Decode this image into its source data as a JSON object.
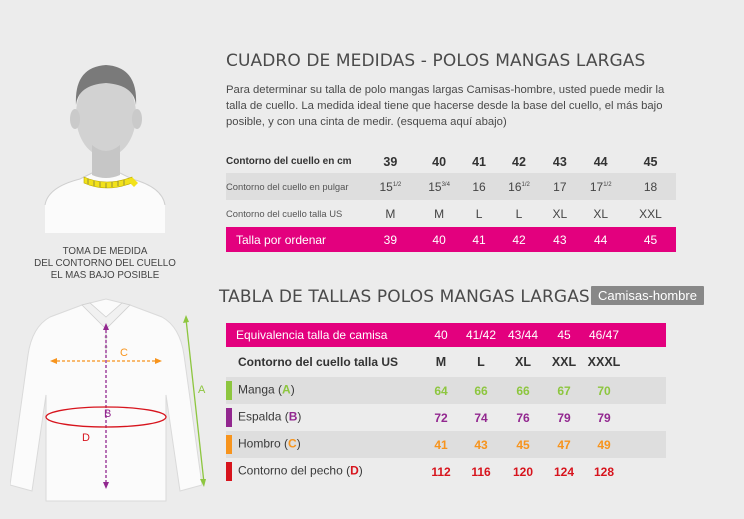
{
  "neck_caption": [
    "TOMA DE MEDIDA",
    "DEL CONTORNO DEL CUELLO",
    "EL MAS BAJO POSIBLE"
  ],
  "section1": {
    "title": "CUADRO DE MEDIDAS - POLOS MANGAS LARGAS",
    "intro": "Para determinar su talla de polo mangas largas Camisas-hombre, usted puede medir la talla de cuello. La medida ideal tiene que hacerse desde la base del cuello, el más bajo posible, y con una cinta de medir. (esquema aquí abajo)",
    "rows": [
      {
        "label": "Contorno del cuello en cm",
        "values": [
          "39",
          "40",
          "41",
          "42",
          "43",
          "44",
          "45"
        ]
      },
      {
        "label": "Contorno del cuello en pulgar",
        "values": [
          "15",
          "15",
          "16",
          "16",
          "17",
          "17",
          "18"
        ],
        "fractions": [
          "1/2",
          "3/4",
          "",
          "1/2",
          "",
          "1/2",
          ""
        ]
      },
      {
        "label": "Contorno del cuello talla US",
        "values": [
          "M",
          "M",
          "L",
          "L",
          "XL",
          "XL",
          "XXL"
        ]
      },
      {
        "label": "Talla por ordenar",
        "values": [
          "39",
          "40",
          "41",
          "42",
          "43",
          "44",
          "45"
        ]
      }
    ]
  },
  "section2": {
    "title": "TABLA DE TALLAS POLOS MANGAS LARGAS",
    "badge": "Camisas-hombre",
    "equiv": {
      "label": "Equivalencia talla de camisa",
      "values": [
        "40",
        "41/42",
        "43/44",
        "45",
        "46/47"
      ]
    },
    "us": {
      "label": "Contorno del cuello talla US",
      "values": [
        "M",
        "L",
        "XL",
        "XXL",
        "XXXL"
      ]
    },
    "measures": [
      {
        "name": "Manga",
        "letter": "A",
        "color": "#8dc63f",
        "values": [
          "64",
          "66",
          "66",
          "67",
          "70"
        ]
      },
      {
        "name": "Espalda",
        "letter": "B",
        "color": "#92278f",
        "values": [
          "72",
          "74",
          "76",
          "79",
          "79"
        ]
      },
      {
        "name": "Hombro",
        "letter": "C",
        "color": "#f7941d",
        "values": [
          "41",
          "43",
          "45",
          "47",
          "49"
        ]
      },
      {
        "name": "Contorno del pecho",
        "letter": "D",
        "color": "#d7141d",
        "values": [
          "112",
          "116",
          "120",
          "124",
          "128"
        ]
      }
    ]
  },
  "diagram_labels": {
    "a": "A",
    "b": "B",
    "c": "C",
    "d": "D"
  }
}
